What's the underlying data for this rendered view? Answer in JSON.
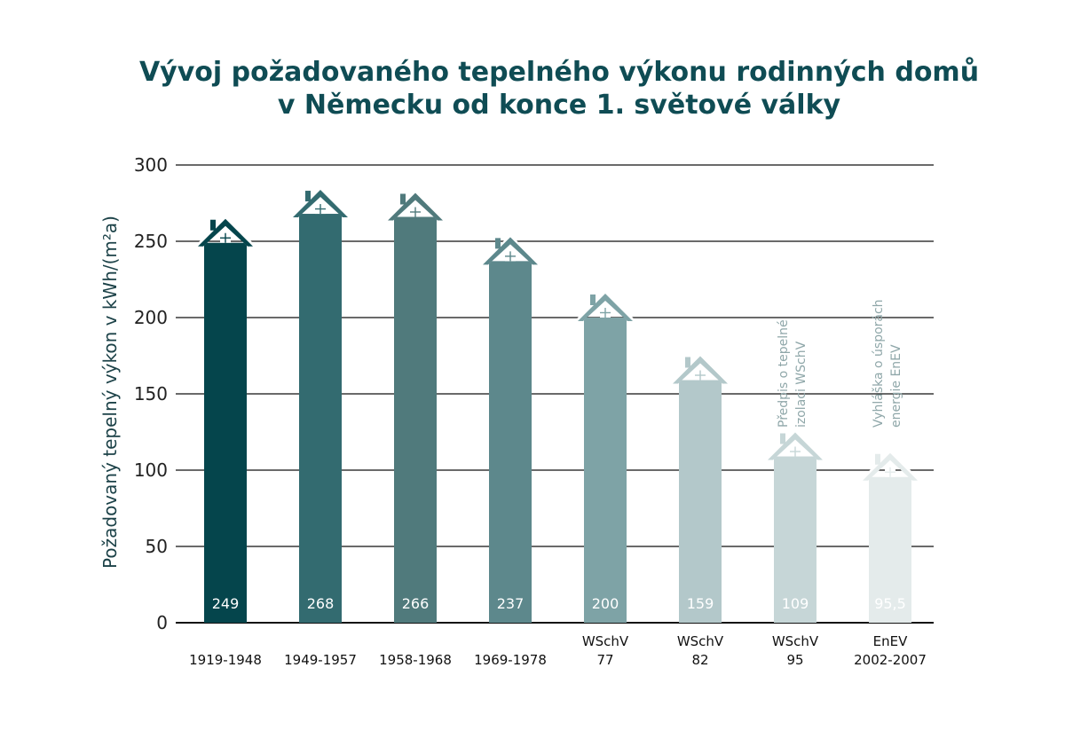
{
  "title_lines": [
    "Vývoj požadovaného tepelného výkonu rodinných domů",
    "v Německu od konce 1. světové války"
  ],
  "chart_data": {
    "type": "bar",
    "ylabel": "Požadovaný tepelný výkon v  kWh/(m²a)",
    "ylim": [
      0,
      300
    ],
    "yticks": [
      0,
      50,
      100,
      150,
      200,
      250,
      300
    ],
    "grid": true,
    "categories": [
      [
        "1919-1948"
      ],
      [
        "1949-1957"
      ],
      [
        "1958-1968"
      ],
      [
        "1969-1978"
      ],
      [
        "WSchV",
        "77"
      ],
      [
        "WSchV",
        "82"
      ],
      [
        "WSchV",
        "95"
      ],
      [
        "EnEV",
        "2002-2007"
      ]
    ],
    "values": [
      249,
      268,
      266,
      237,
      200,
      159,
      109,
      95.5
    ],
    "value_labels": [
      "249",
      "268",
      "266",
      "237",
      "200",
      "159",
      "109",
      "95,5"
    ],
    "colors": [
      "#05454c",
      "#336b70",
      "#507a7c",
      "#5d888c",
      "#7ea3a6",
      "#b3c8ca",
      "#c6d6d7",
      "#e4ebeb"
    ],
    "annotations": [
      {
        "bar_index": 6,
        "lines": [
          "Předpis o tepelné",
          "izolaci WSchV"
        ]
      },
      {
        "bar_index": 7,
        "lines": [
          "Vyhláška o úsporách",
          "energie EnEV"
        ]
      }
    ]
  }
}
